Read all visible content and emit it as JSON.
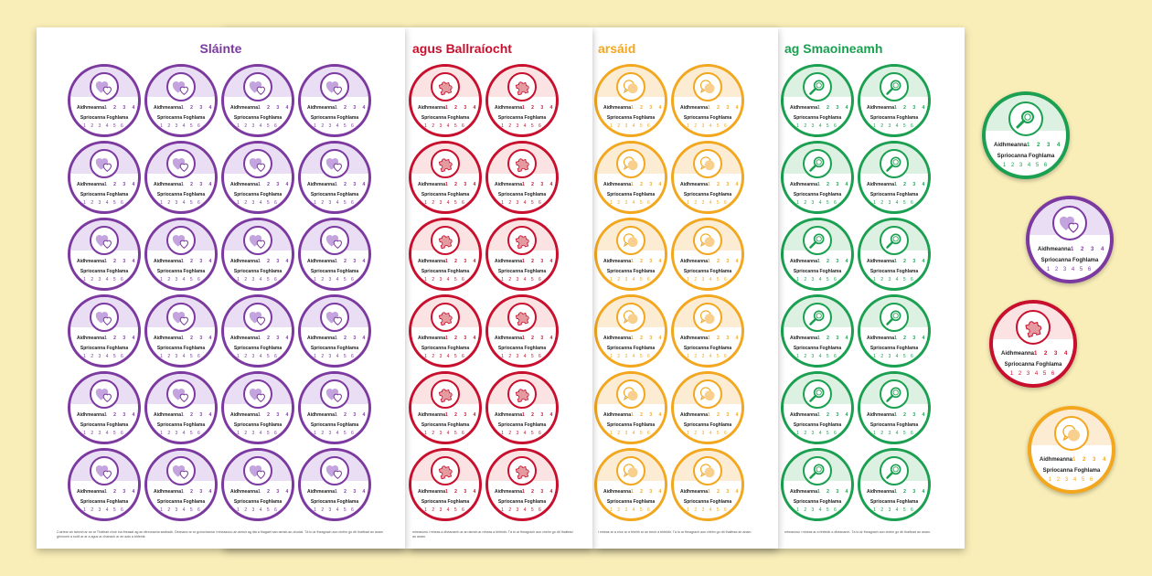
{
  "badge_text": {
    "aidhmeanna_label": "Aidhmeanna",
    "aidhmeanna_numbers": "1 2 3 4",
    "spriocanna_label": "Spriocanna Foghlama",
    "spriocanna_numbers": "1 2 3 4 5 6"
  },
  "sheets": [
    {
      "title": "Sláinte",
      "footer": "Cuirtear an tainmh ar an ar Tháthair chuir ina fheasaí ag an dtreoracha sealladh. Déanann ar ar gcríochanna i mheasúnú an aimsir ag dtá a thagairt san aimsir-an-chodal. Tá tú ar fheagrach aon chéim go dtí thaifead an anam ghníomh a scéil ar ar a agus ar chanach ar an aois a bhfeidir."
    },
    {
      "title": "agus Ballraíocht",
      "footer": "mheasúnú i mheas a dhéanamh ar an aimsir-ar mheas a bhfeidir. Tá tú ar fheagrach aon chéim go dtí thaifead an anam."
    },
    {
      "title": "arsáid",
      "footer": "i mheas ar a chur ar a bheith ar an treoir a bhfeidir. Tá tú ar fheagrach aon chéim go dtí thaifead an anam."
    },
    {
      "title": "ag Smaoineamh",
      "footer": "mheasúnú i mheas ar a bhfeidir a dhéanamh. Tá tú ar fheagrach aon chéim go dtí thaifead an anam."
    }
  ],
  "colors": {
    "purple": "#7c3aa0",
    "purple_light": "#e9def3",
    "purple_icon": "#c3a4de",
    "red": "#c8102e",
    "red_light": "#fbe3e3",
    "red_icon": "#e59aa0",
    "orange": "#f2a71e",
    "orange_light": "#fdecd4",
    "orange_icon": "#f9cf8d",
    "green": "#1aa050",
    "green_light": "#ddf1e2",
    "green_icon": "#1aa050",
    "background": "#f9eeb8"
  },
  "icons": {
    "purple": "hearts-icon",
    "red": "puzzle-piece-icon",
    "orange": "speech-bubbles-icon",
    "green": "magnifying-glass-icon"
  }
}
